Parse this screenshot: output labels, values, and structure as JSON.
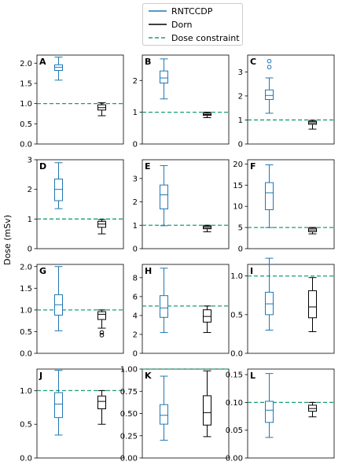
{
  "colors": {
    "rntccdp": "#1f77b4",
    "dorn": "#000000",
    "constraint": "#1a9e77"
  },
  "legend": {
    "placement": "top-center",
    "items": [
      {
        "label": "RNTCCDP",
        "color": "#1f77b4",
        "style": "solid"
      },
      {
        "label": "Dorn",
        "color": "#000000",
        "style": "solid"
      },
      {
        "label": "Dose constraint",
        "color": "#1a9e77",
        "style": "dashed"
      }
    ]
  },
  "shared_ylabel": "Dose (mSv)",
  "chart_data": [
    {
      "type": "box",
      "panel": "A",
      "ylim": [
        0,
        2.2
      ],
      "yticks": [
        "0.0",
        "0.5",
        "1.0",
        "1.5",
        "2.0"
      ],
      "ytick_values": [
        0,
        0.5,
        1,
        1.5,
        2
      ],
      "constraint": 1.0,
      "series": [
        {
          "name": "RNTCCDP",
          "whislo": 1.58,
          "q1": 1.82,
          "med": 1.9,
          "q3": 1.96,
          "whishi": 2.15,
          "fliers": []
        },
        {
          "name": "Dorn",
          "whislo": 0.7,
          "q1": 0.84,
          "med": 0.9,
          "q3": 0.97,
          "whishi": 1.02,
          "fliers": []
        }
      ]
    },
    {
      "type": "box",
      "panel": "B",
      "ylim": [
        0,
        2.8
      ],
      "yticks": [
        "0",
        "1",
        "2"
      ],
      "ytick_values": [
        0,
        1,
        2
      ],
      "constraint": 1.0,
      "series": [
        {
          "name": "RNTCCDP",
          "whislo": 1.42,
          "q1": 1.92,
          "med": 2.08,
          "q3": 2.3,
          "whishi": 2.68,
          "fliers": []
        },
        {
          "name": "Dorn",
          "whislo": 0.83,
          "q1": 0.9,
          "med": 0.93,
          "q3": 0.97,
          "whishi": 1.0,
          "fliers": []
        }
      ]
    },
    {
      "type": "box",
      "panel": "C",
      "ylim": [
        0,
        3.7
      ],
      "yticks": [
        "0",
        "1",
        "2",
        "3"
      ],
      "ytick_values": [
        0,
        1,
        2,
        3
      ],
      "constraint": 1.0,
      "series": [
        {
          "name": "RNTCCDP",
          "whislo": 1.28,
          "q1": 1.85,
          "med": 2.02,
          "q3": 2.25,
          "whishi": 2.75,
          "fliers": [
            3.2,
            3.45
          ]
        },
        {
          "name": "Dorn",
          "whislo": 0.62,
          "q1": 0.82,
          "med": 0.88,
          "q3": 0.94,
          "whishi": 0.98,
          "fliers": []
        }
      ]
    },
    {
      "type": "box",
      "panel": "D",
      "ylim": [
        0,
        3.0
      ],
      "yticks": [
        "0",
        "1",
        "2",
        "3"
      ],
      "ytick_values": [
        0,
        1,
        2,
        3
      ],
      "constraint": 1.0,
      "series": [
        {
          "name": "RNTCCDP",
          "whislo": 1.35,
          "q1": 1.62,
          "med": 2.0,
          "q3": 2.35,
          "whishi": 2.9,
          "fliers": []
        },
        {
          "name": "Dorn",
          "whislo": 0.5,
          "q1": 0.72,
          "med": 0.83,
          "q3": 0.92,
          "whishi": 0.98,
          "fliers": []
        }
      ]
    },
    {
      "type": "box",
      "panel": "E",
      "ylim": [
        0,
        3.8
      ],
      "yticks": [
        "0",
        "1",
        "2",
        "3"
      ],
      "ytick_values": [
        0,
        1,
        2,
        3
      ],
      "constraint": 1.0,
      "series": [
        {
          "name": "RNTCCDP",
          "whislo": 0.98,
          "q1": 1.7,
          "med": 2.3,
          "q3": 2.72,
          "whishi": 3.55,
          "fliers": []
        },
        {
          "name": "Dorn",
          "whislo": 0.72,
          "q1": 0.85,
          "med": 0.9,
          "q3": 0.96,
          "whishi": 1.0,
          "fliers": []
        }
      ]
    },
    {
      "type": "box",
      "panel": "F",
      "ylim": [
        0,
        21
      ],
      "yticks": [
        "0",
        "5",
        "10",
        "15",
        "20"
      ],
      "ytick_values": [
        0,
        5,
        10,
        15,
        20
      ],
      "constraint": 5.0,
      "series": [
        {
          "name": "RNTCCDP",
          "whislo": 5.0,
          "q1": 9.2,
          "med": 13.2,
          "q3": 15.6,
          "whishi": 19.8,
          "fliers": []
        },
        {
          "name": "Dorn",
          "whislo": 3.5,
          "q1": 4.0,
          "med": 4.4,
          "q3": 4.8,
          "whishi": 5.0,
          "fliers": []
        }
      ]
    },
    {
      "type": "box",
      "panel": "G",
      "ylim": [
        0,
        2.05
      ],
      "yticks": [
        "0.0",
        "0.5",
        "1.0",
        "1.5",
        "2.0"
      ],
      "ytick_values": [
        0,
        0.5,
        1,
        1.5,
        2
      ],
      "constraint": 1.0,
      "series": [
        {
          "name": "RNTCCDP",
          "whislo": 0.52,
          "q1": 0.88,
          "med": 1.12,
          "q3": 1.35,
          "whishi": 2.0,
          "fliers": []
        },
        {
          "name": "Dorn",
          "whislo": 0.58,
          "q1": 0.78,
          "med": 0.9,
          "q3": 0.96,
          "whishi": 1.0,
          "fliers": [
            0.48,
            0.42
          ]
        }
      ]
    },
    {
      "type": "box",
      "panel": "H",
      "ylim": [
        0,
        9.4
      ],
      "yticks": [
        "0",
        "2",
        "4",
        "6",
        "8"
      ],
      "ytick_values": [
        0,
        2,
        4,
        6,
        8
      ],
      "constraint": 5.0,
      "series": [
        {
          "name": "RNTCCDP",
          "whislo": 2.2,
          "q1": 3.8,
          "med": 4.8,
          "q3": 6.1,
          "whishi": 9.0,
          "fliers": []
        },
        {
          "name": "Dorn",
          "whislo": 2.2,
          "q1": 3.3,
          "med": 3.9,
          "q3": 4.6,
          "whishi": 5.0,
          "fliers": []
        }
      ]
    },
    {
      "type": "box",
      "panel": "I",
      "ylim": [
        0,
        1.15
      ],
      "yticks": [
        "0.0",
        "0.5",
        "1.0"
      ],
      "ytick_values": [
        0,
        0.5,
        1
      ],
      "constraint": 1.0,
      "series": [
        {
          "name": "RNTCCDP",
          "whislo": 0.3,
          "q1": 0.5,
          "med": 0.64,
          "q3": 0.79,
          "whishi": 1.23,
          "fliers": []
        },
        {
          "name": "Dorn",
          "whislo": 0.28,
          "q1": 0.46,
          "med": 0.6,
          "q3": 0.81,
          "whishi": 0.98,
          "fliers": []
        }
      ]
    },
    {
      "type": "box",
      "panel": "J",
      "ylim": [
        0,
        1.32
      ],
      "yticks": [
        "0.0",
        "0.5",
        "1.0"
      ],
      "ytick_values": [
        0,
        0.5,
        1
      ],
      "constraint": 1.0,
      "series": [
        {
          "name": "RNTCCDP",
          "whislo": 0.34,
          "q1": 0.6,
          "med": 0.8,
          "q3": 0.97,
          "whishi": 1.3,
          "fliers": []
        },
        {
          "name": "Dorn",
          "whislo": 0.5,
          "q1": 0.73,
          "med": 0.84,
          "q3": 0.92,
          "whishi": 1.0,
          "fliers": []
        }
      ]
    },
    {
      "type": "box",
      "panel": "K",
      "ylim": [
        0,
        1.0
      ],
      "yticks": [
        "0.00",
        "0.25",
        "0.50",
        "0.75",
        "1.00"
      ],
      "ytick_values": [
        0,
        0.25,
        0.5,
        0.75,
        1
      ],
      "constraint": 1.0,
      "series": [
        {
          "name": "RNTCCDP",
          "whislo": 0.2,
          "q1": 0.38,
          "med": 0.48,
          "q3": 0.6,
          "whishi": 0.92,
          "fliers": []
        },
        {
          "name": "Dorn",
          "whislo": 0.24,
          "q1": 0.37,
          "med": 0.51,
          "q3": 0.7,
          "whishi": 0.98,
          "fliers": []
        }
      ]
    },
    {
      "type": "box",
      "panel": "L",
      "ylim": [
        0,
        0.16
      ],
      "yticks": [
        "0.00",
        "0.05",
        "0.10",
        "0.15"
      ],
      "ytick_values": [
        0,
        0.05,
        0.1,
        0.15
      ],
      "constraint": 0.1,
      "series": [
        {
          "name": "RNTCCDP",
          "whislo": 0.037,
          "q1": 0.064,
          "med": 0.086,
          "q3": 0.102,
          "whishi": 0.152,
          "fliers": []
        },
        {
          "name": "Dorn",
          "whislo": 0.074,
          "q1": 0.084,
          "med": 0.089,
          "q3": 0.095,
          "whishi": 0.1,
          "fliers": []
        }
      ]
    }
  ]
}
